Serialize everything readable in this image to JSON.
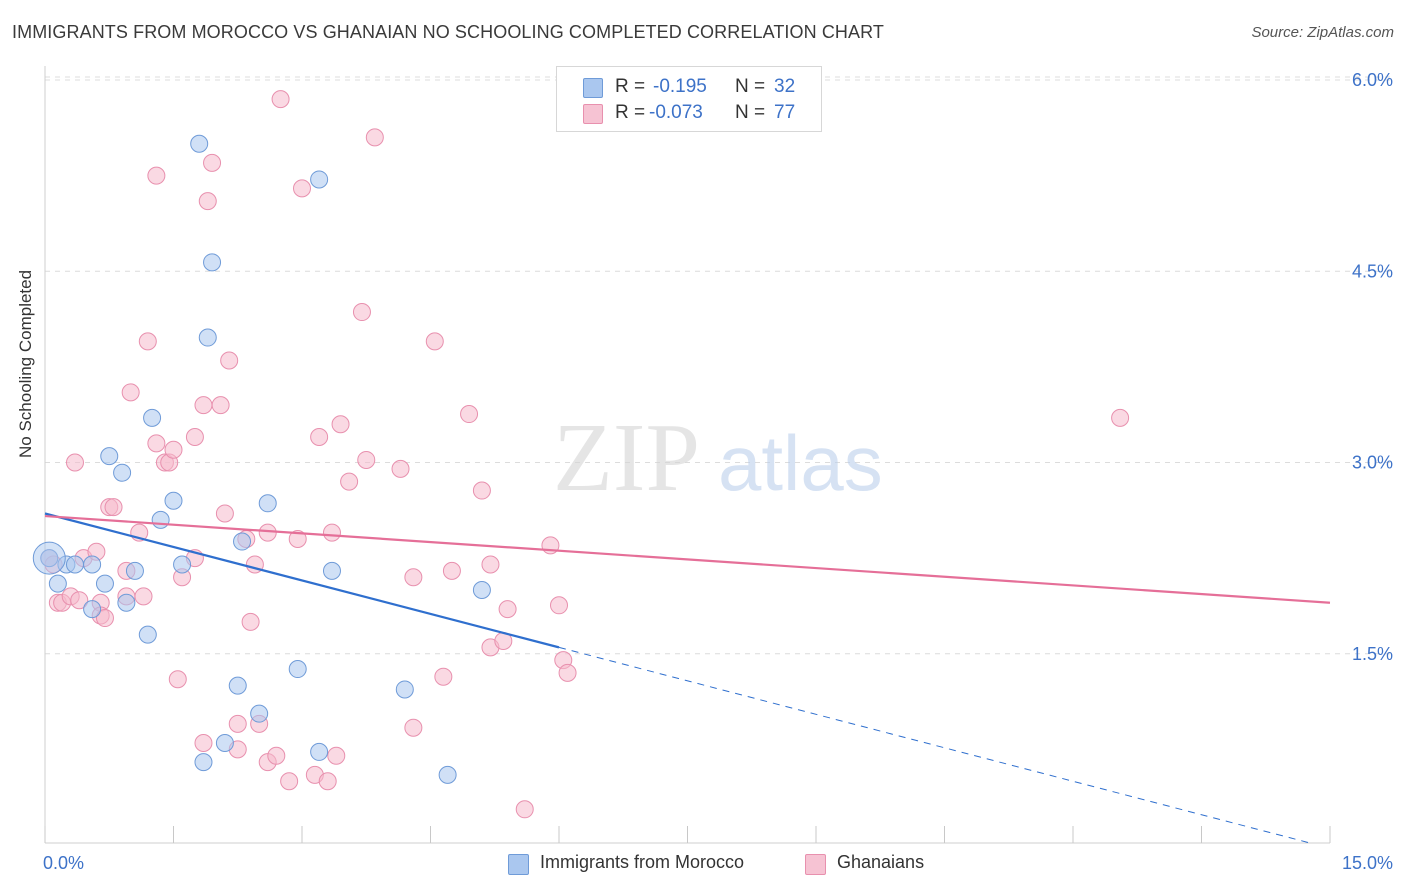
{
  "header": {
    "title": "IMMIGRANTS FROM MOROCCO VS GHANAIAN NO SCHOOLING COMPLETED CORRELATION CHART",
    "source": "Source: ZipAtlas.com"
  },
  "watermark": {
    "zip": "ZIP",
    "atlas": "atlas"
  },
  "legend": {
    "series1": {
      "r_label": "R =",
      "r_value": "-0.195",
      "n_label": "N =",
      "n_value": "32"
    },
    "series2": {
      "r_label": "R =",
      "r_value": "-0.073",
      "n_label": "N =",
      "n_value": "77"
    }
  },
  "bottom_legend": {
    "series1": "Immigrants from Morocco",
    "series2": "Ghanaians"
  },
  "colors": {
    "blue_fill": "#aac7ef",
    "blue_stroke": "#6f9bd8",
    "blue_line": "#2f6fce",
    "pink_fill": "#f6b9cc",
    "pink_stroke": "#e890ae",
    "pink_line": "#e56f98",
    "grid": "#dcdcdc",
    "tick_label": "#3d72c8"
  },
  "chart_data": {
    "type": "scatter",
    "title": "IMMIGRANTS FROM MOROCCO VS GHANAIAN NO SCHOOLING COMPLETED CORRELATION CHART",
    "xlabel": "",
    "ylabel": "No Schooling Completed",
    "xlim": [
      0,
      15
    ],
    "ylim": [
      0,
      6.2
    ],
    "x_tick_labels": [
      "0.0%",
      "15.0%"
    ],
    "y_ticks": [
      1.5,
      3.0,
      4.5,
      6.0
    ],
    "y_tick_labels": [
      "1.5%",
      "3.0%",
      "4.5%",
      "6.0%"
    ],
    "grid": "horizontal dashed",
    "series": [
      {
        "name": "Immigrants from Morocco",
        "color": "blue",
        "r": -0.195,
        "n": 32,
        "points": [
          [
            0.05,
            2.25
          ],
          [
            0.15,
            2.05
          ],
          [
            0.25,
            2.2
          ],
          [
            0.35,
            2.2
          ],
          [
            0.55,
            2.2
          ],
          [
            0.7,
            2.05
          ],
          [
            0.55,
            1.85
          ],
          [
            0.95,
            1.9
          ],
          [
            1.05,
            2.15
          ],
          [
            0.75,
            3.05
          ],
          [
            0.9,
            2.92
          ],
          [
            1.25,
            3.35
          ],
          [
            1.35,
            2.55
          ],
          [
            1.5,
            2.7
          ],
          [
            1.6,
            2.2
          ],
          [
            1.2,
            1.65
          ],
          [
            1.8,
            5.5
          ],
          [
            1.9,
            3.98
          ],
          [
            1.95,
            4.57
          ],
          [
            2.3,
            2.38
          ],
          [
            2.6,
            2.68
          ],
          [
            2.25,
            1.25
          ],
          [
            2.5,
            1.03
          ],
          [
            2.1,
            0.8
          ],
          [
            1.85,
            0.65
          ],
          [
            2.95,
            1.38
          ],
          [
            3.2,
            0.73
          ],
          [
            3.35,
            2.15
          ],
          [
            3.2,
            5.22
          ],
          [
            4.2,
            1.22
          ],
          [
            5.1,
            2.0
          ],
          [
            4.7,
            0.55
          ]
        ]
      },
      {
        "name": "Ghanaians",
        "color": "pink",
        "r": -0.073,
        "n": 77,
        "points": [
          [
            0.05,
            2.25
          ],
          [
            0.15,
            1.9
          ],
          [
            0.2,
            1.9
          ],
          [
            0.3,
            1.95
          ],
          [
            0.35,
            3.0
          ],
          [
            0.45,
            2.25
          ],
          [
            0.6,
            2.3
          ],
          [
            0.65,
            1.9
          ],
          [
            0.65,
            1.8
          ],
          [
            0.7,
            1.78
          ],
          [
            0.75,
            2.65
          ],
          [
            0.8,
            2.65
          ],
          [
            0.95,
            2.15
          ],
          [
            0.95,
            1.95
          ],
          [
            1.0,
            3.55
          ],
          [
            1.1,
            2.45
          ],
          [
            1.15,
            1.95
          ],
          [
            1.2,
            3.95
          ],
          [
            1.3,
            3.15
          ],
          [
            1.4,
            3.0
          ],
          [
            1.45,
            3.0
          ],
          [
            1.5,
            3.1
          ],
          [
            1.3,
            5.25
          ],
          [
            1.55,
            1.3
          ],
          [
            1.6,
            2.1
          ],
          [
            1.75,
            3.2
          ],
          [
            1.75,
            2.25
          ],
          [
            1.85,
            3.45
          ],
          [
            1.9,
            5.05
          ],
          [
            1.95,
            5.35
          ],
          [
            2.05,
            3.45
          ],
          [
            2.1,
            2.6
          ],
          [
            2.15,
            3.8
          ],
          [
            2.25,
            0.95
          ],
          [
            2.25,
            0.75
          ],
          [
            2.35,
            2.4
          ],
          [
            2.4,
            1.75
          ],
          [
            2.45,
            2.2
          ],
          [
            2.5,
            0.95
          ],
          [
            2.6,
            2.45
          ],
          [
            2.6,
            0.65
          ],
          [
            2.7,
            0.7
          ],
          [
            2.75,
            5.85
          ],
          [
            2.85,
            0.5
          ],
          [
            2.95,
            2.4
          ],
          [
            3.0,
            5.15
          ],
          [
            3.15,
            0.55
          ],
          [
            3.2,
            3.2
          ],
          [
            3.3,
            0.5
          ],
          [
            3.35,
            2.45
          ],
          [
            3.4,
            0.7
          ],
          [
            3.45,
            3.3
          ],
          [
            3.55,
            2.85
          ],
          [
            3.7,
            4.18
          ],
          [
            3.75,
            3.02
          ],
          [
            3.85,
            5.55
          ],
          [
            4.15,
            2.95
          ],
          [
            4.3,
            2.1
          ],
          [
            4.3,
            0.92
          ],
          [
            4.55,
            3.95
          ],
          [
            4.65,
            1.32
          ],
          [
            4.75,
            2.15
          ],
          [
            4.95,
            3.38
          ],
          [
            5.1,
            2.78
          ],
          [
            5.2,
            2.2
          ],
          [
            5.2,
            1.55
          ],
          [
            5.35,
            1.6
          ],
          [
            5.4,
            1.85
          ],
          [
            5.6,
            0.28
          ],
          [
            5.9,
            2.35
          ],
          [
            6.0,
            1.88
          ],
          [
            6.05,
            1.45
          ],
          [
            6.1,
            1.35
          ],
          [
            0.1,
            2.2
          ],
          [
            0.4,
            1.92
          ],
          [
            1.85,
            0.8
          ],
          [
            12.55,
            3.35
          ]
        ]
      }
    ],
    "trend_lines": [
      {
        "series": "Immigrants from Morocco",
        "x0": 0,
        "y0": 2.6,
        "x1": 6.0,
        "y1": 1.55,
        "dashed_to_x": 14.8,
        "dashed_to_y": 0.01
      },
      {
        "series": "Ghanaians",
        "x0": 0,
        "y0": 2.58,
        "x1": 15.0,
        "y1": 1.9
      }
    ]
  }
}
